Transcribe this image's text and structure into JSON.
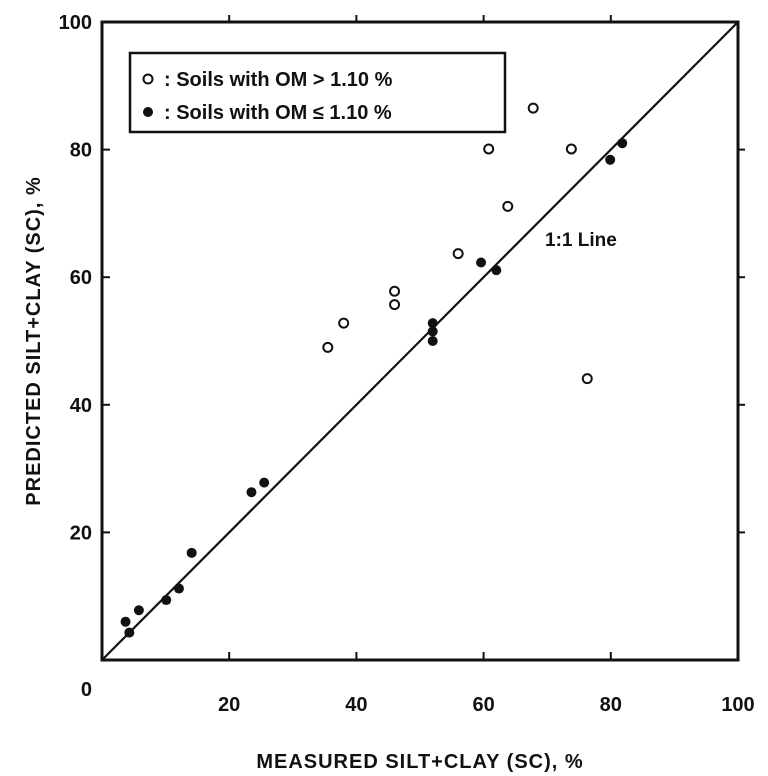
{
  "chart_data": {
    "type": "scatter",
    "title": "",
    "xlabel": "MEASURED SILT+CLAY (SC), %",
    "ylabel": "PREDICTED SILT+CLAY (SC), %",
    "xlim": [
      0,
      100
    ],
    "ylim": [
      0,
      100
    ],
    "x_ticks": [
      0,
      20,
      40,
      60,
      80,
      100
    ],
    "y_ticks": [
      0,
      20,
      40,
      60,
      80,
      100
    ],
    "x_tick_labels": [
      "20",
      "40",
      "60",
      "80",
      "100"
    ],
    "y_tick_labels": [
      "0",
      "20",
      "40",
      "60",
      "80",
      "100"
    ],
    "grid": false,
    "legend_position": "top-left",
    "reference_line": {
      "label": "1:1 Line",
      "x": [
        0,
        100
      ],
      "y": [
        0,
        100
      ]
    },
    "series": [
      {
        "name": ": Soils with OM > 1.10 %",
        "marker": "open-circle",
        "points": [
          {
            "x": 35.5,
            "y": 49.0
          },
          {
            "x": 38.0,
            "y": 52.8
          },
          {
            "x": 46.0,
            "y": 55.7
          },
          {
            "x": 46.0,
            "y": 57.8
          },
          {
            "x": 56.0,
            "y": 63.7
          },
          {
            "x": 60.8,
            "y": 80.1
          },
          {
            "x": 63.8,
            "y": 71.1
          },
          {
            "x": 67.8,
            "y": 86.5
          },
          {
            "x": 73.8,
            "y": 80.1
          },
          {
            "x": 76.3,
            "y": 44.1
          }
        ]
      },
      {
        "name": ": Soils with OM ≤ 1.10 %",
        "marker": "filled-circle",
        "points": [
          {
            "x": 3.7,
            "y": 6.0
          },
          {
            "x": 4.3,
            "y": 4.3
          },
          {
            "x": 5.8,
            "y": 7.8
          },
          {
            "x": 10.1,
            "y": 9.4
          },
          {
            "x": 12.1,
            "y": 11.2
          },
          {
            "x": 14.1,
            "y": 16.8
          },
          {
            "x": 23.5,
            "y": 26.3
          },
          {
            "x": 25.5,
            "y": 27.8
          },
          {
            "x": 52.0,
            "y": 50.0
          },
          {
            "x": 52.0,
            "y": 51.5
          },
          {
            "x": 52.0,
            "y": 52.8
          },
          {
            "x": 59.6,
            "y": 62.3
          },
          {
            "x": 62.0,
            "y": 61.1
          },
          {
            "x": 79.9,
            "y": 78.4
          },
          {
            "x": 81.8,
            "y": 81.0
          }
        ]
      }
    ]
  }
}
